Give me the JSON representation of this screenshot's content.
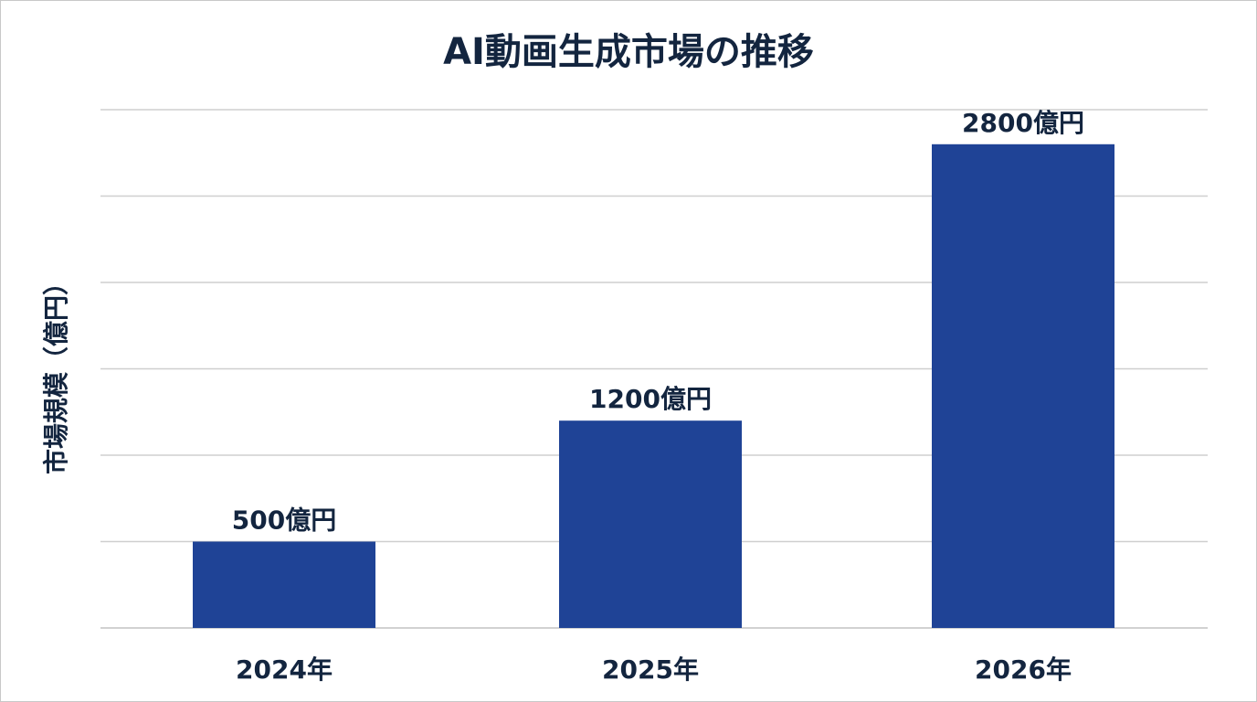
{
  "chart_data": {
    "type": "bar",
    "title": "AI動画生成市場の推移",
    "xlabel": "",
    "ylabel": "市場規模（億円）",
    "categories": [
      "2024年",
      "2025年",
      "2026年"
    ],
    "values": [
      500,
      1200,
      2800
    ],
    "data_labels": [
      "500億円",
      "1200億円",
      "2800億円"
    ],
    "ylim": [
      0,
      3000
    ],
    "grid": true,
    "legend": "none",
    "bar_color": "#1f4396"
  }
}
